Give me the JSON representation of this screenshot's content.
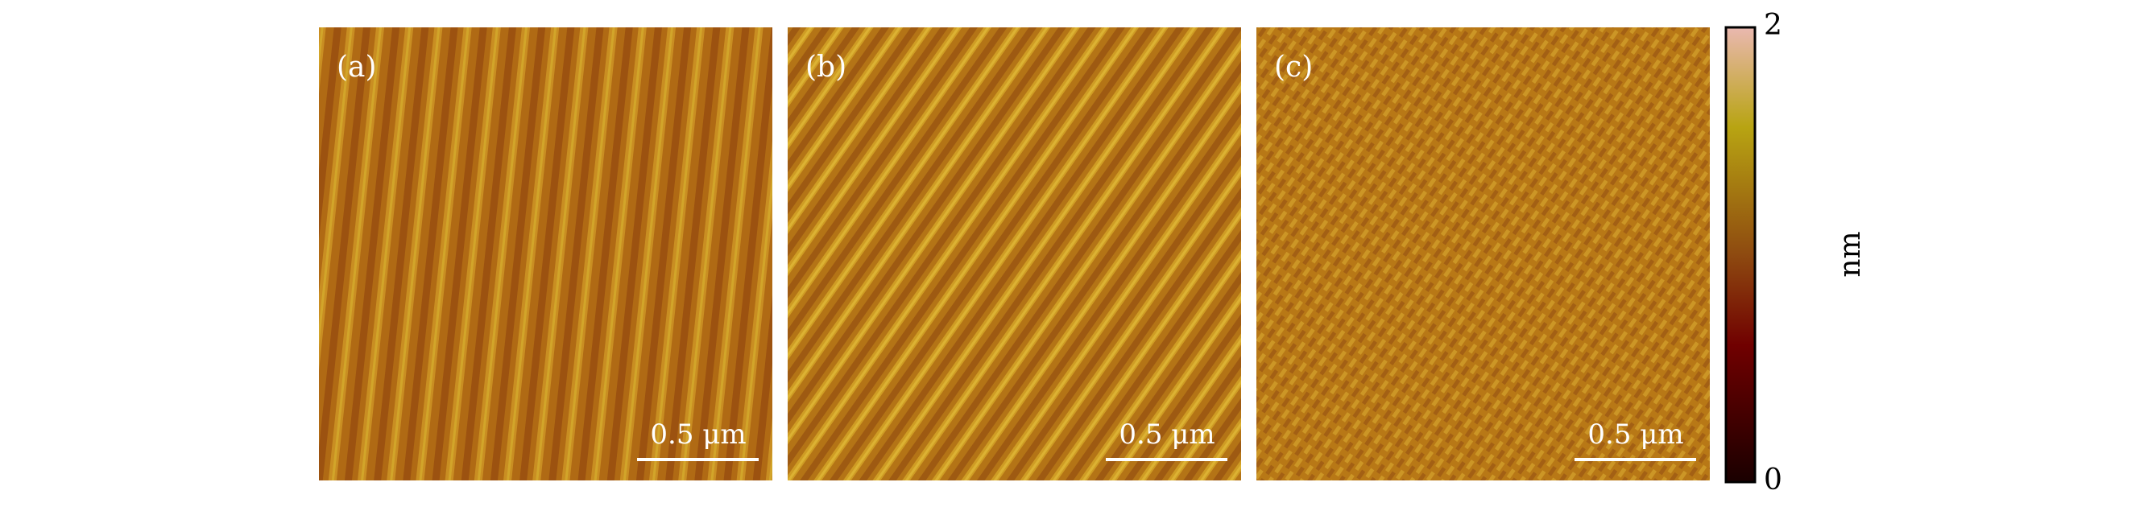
{
  "panels": [
    {
      "label": "(a)",
      "scale_bar": "0.5 μm"
    },
    {
      "label": "(b)",
      "scale_bar": "0.5 μm"
    },
    {
      "label": "(c)",
      "scale_bar": "0.5 μm"
    }
  ],
  "colorbar": {
    "label": "nm",
    "lim": [
      0,
      2
    ],
    "ticks": [
      0,
      2
    ]
  }
}
